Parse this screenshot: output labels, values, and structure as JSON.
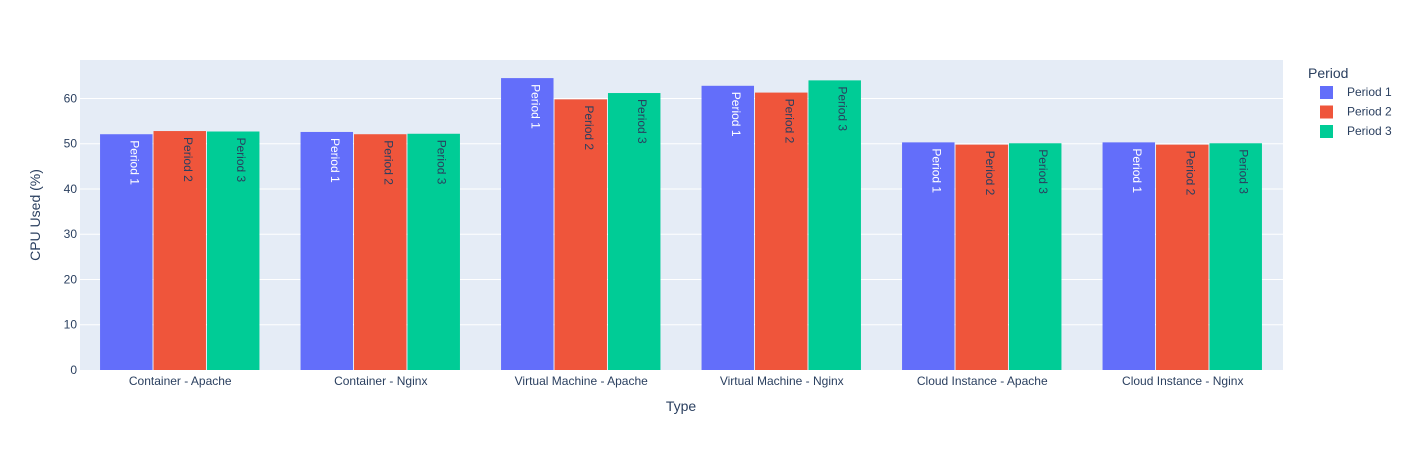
{
  "chart_data": {
    "type": "bar",
    "xlabel": "Type",
    "ylabel": "CPU Used (%)",
    "ylim": [
      0,
      68.5
    ],
    "yticks": [
      0,
      10,
      20,
      30,
      40,
      50,
      60
    ],
    "grid": true,
    "legend_title": "Period",
    "legend_position": "top-right",
    "categories": [
      "Container - Apache",
      "Container - Nginx",
      "Virtual Machine - Apache",
      "Virtual Machine - Nginx",
      "Cloud Instance - Apache",
      "Cloud Instance - Nginx"
    ],
    "series": [
      {
        "name": "Period 1",
        "color": "#636efa",
        "label_color": "#ffffff",
        "values": [
          52.1,
          52.6,
          64.5,
          62.8,
          50.3,
          50.3
        ]
      },
      {
        "name": "Period 2",
        "color": "#ef553b",
        "label_color": "#2a3f5f",
        "values": [
          52.8,
          52.1,
          59.8,
          61.3,
          49.8,
          49.8
        ]
      },
      {
        "name": "Period 3",
        "color": "#00cc96",
        "label_color": "#2a3f5f",
        "values": [
          52.7,
          52.2,
          61.2,
          64.0,
          50.1,
          50.1
        ]
      }
    ]
  }
}
